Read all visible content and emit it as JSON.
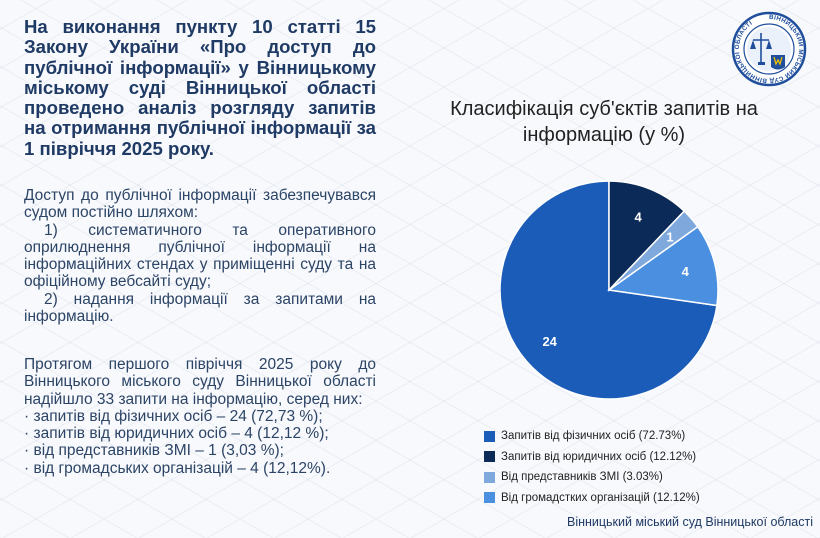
{
  "heading": "На виконання пункту 10 статті 15 Закону України «Про доступ до публічної інформації» у Вінницькому міському суді Вінницької області проведено аналіз розгляду запитів на отримання публічної інформації за 1 півріччя 2025 року.",
  "access": {
    "intro": "Доступ до публічної інформації забезпечувався судом постійно шляхом:",
    "item1": "1) систематичного та оперативного оприлюднення публічної інформації на інформаційних стендах у приміщенні суду та на офіційному вебсайті суду;",
    "item2": "2) надання інформації за запитами на інформацію."
  },
  "summary": {
    "intro": "Протягом першого півріччя 2025 року до Вінницького міського суду Вінницької області надійшло 33 запити на інформацію, серед них:",
    "lines": [
      "· запитів від фізичних осіб – 24 (72,73 %);",
      "· запитів від юридичних осіб – 4 (12,12 %);",
      "· від представників ЗМІ – 1 (3,03 %);",
      "· від громадських організацій – 4 (12,12%)."
    ]
  },
  "footer": "Вінницький міський суд Вінницької області",
  "seal": {
    "text": "ВІННИЦЬКИЙ МІСЬКИЙ СУД ВІННИЦЬКОЇ ОБЛАСТІ",
    "icon": "court-seal-icon"
  },
  "chart_data": {
    "type": "pie",
    "title": "Класифікація суб'єктів запитів на інформацію (у %)",
    "legend_position": "bottom",
    "slices": [
      {
        "label": "Запитів від фізичних осіб (72.73%)",
        "value": 24,
        "color": "#1a5cb8"
      },
      {
        "label": "Запитів від юридичних осіб (12.12%)",
        "value": 4,
        "color": "#0c2a57"
      },
      {
        "label": "Від представників ЗМІ (3.03%)",
        "value": 1,
        "color": "#7fa8dc"
      },
      {
        "label": "Від громадстких організацій (12.12%)",
        "value": 4,
        "color": "#4a8fe0"
      }
    ]
  }
}
